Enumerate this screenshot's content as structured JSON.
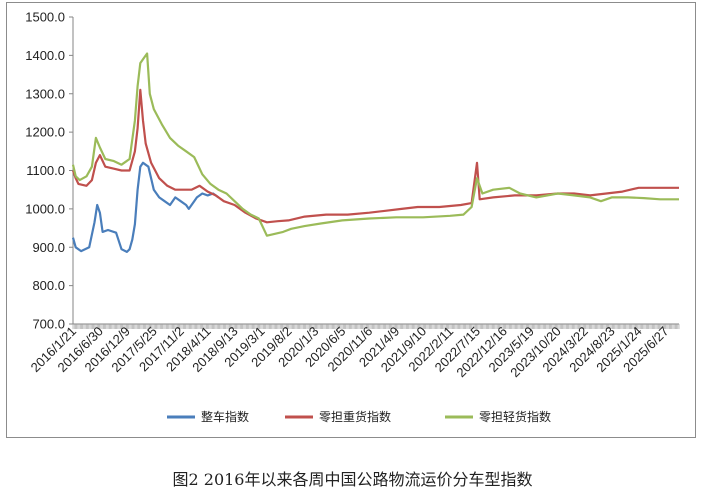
{
  "caption": "图2 2016年以来各周中国公路物流运价分车型指数",
  "colors": {
    "整车指数": "#4a7ebb",
    "零担重货指数": "#c0504d",
    "零担轻货指数": "#9bbb59"
  },
  "chart_data": {
    "type": "line",
    "title": "",
    "xlabel": "",
    "ylabel": "",
    "ylim": [
      700,
      1500
    ],
    "yticks": [
      "700.0",
      "800.0",
      "900.0",
      "1000.0",
      "1100.0",
      "1200.0",
      "1300.0",
      "1400.0",
      "1500.0"
    ],
    "xticks": [
      "2016/1/21",
      "2016/6/30",
      "2016/12/9",
      "2017/5/25",
      "2017/11/2",
      "2018/4/11",
      "2018/9/13",
      "2019/3/1",
      "2019/8/2",
      "2020/1/3",
      "2020/6/5",
      "2020/11/6",
      "2021/4/9",
      "2021/9/10",
      "2022/2/11",
      "2022/7/15",
      "2022/12/16",
      "2023/5/19",
      "2023/10/20",
      "2024/3/22",
      "2024/8/23",
      "2025/1/24",
      "2025/6/27"
    ],
    "legend_position": "bottom",
    "grid": false,
    "series": [
      {
        "name": "整车指数",
        "points": [
          [
            0,
            925
          ],
          [
            0.1,
            900
          ],
          [
            0.3,
            890
          ],
          [
            0.6,
            900
          ],
          [
            0.8,
            965
          ],
          [
            0.9,
            1010
          ],
          [
            1.0,
            990
          ],
          [
            1.1,
            940
          ],
          [
            1.3,
            945
          ],
          [
            1.6,
            938
          ],
          [
            1.8,
            895
          ],
          [
            2.0,
            888
          ],
          [
            2.1,
            895
          ],
          [
            2.2,
            920
          ],
          [
            2.3,
            960
          ],
          [
            2.4,
            1050
          ],
          [
            2.5,
            1110
          ],
          [
            2.6,
            1120
          ],
          [
            2.8,
            1110
          ],
          [
            2.9,
            1080
          ],
          [
            3.0,
            1050
          ],
          [
            3.2,
            1030
          ],
          [
            3.4,
            1020
          ],
          [
            3.6,
            1010
          ],
          [
            3.8,
            1030
          ],
          [
            4.0,
            1020
          ],
          [
            4.2,
            1010
          ],
          [
            4.3,
            1000
          ],
          [
            4.5,
            1020
          ],
          [
            4.6,
            1030
          ],
          [
            4.8,
            1040
          ],
          [
            5.0,
            1035
          ],
          [
            5.2,
            1040
          ],
          [
            5.4,
            1030
          ]
        ]
      },
      {
        "name": "零担重货指数",
        "points": [
          [
            0,
            1100
          ],
          [
            0.1,
            1080
          ],
          [
            0.2,
            1065
          ],
          [
            0.5,
            1060
          ],
          [
            0.7,
            1075
          ],
          [
            0.85,
            1120
          ],
          [
            1.0,
            1140
          ],
          [
            1.2,
            1110
          ],
          [
            1.5,
            1105
          ],
          [
            1.8,
            1100
          ],
          [
            2.1,
            1100
          ],
          [
            2.3,
            1150
          ],
          [
            2.4,
            1210
          ],
          [
            2.5,
            1310
          ],
          [
            2.6,
            1230
          ],
          [
            2.7,
            1170
          ],
          [
            2.9,
            1120
          ],
          [
            3.2,
            1080
          ],
          [
            3.5,
            1060
          ],
          [
            3.8,
            1050
          ],
          [
            4.1,
            1050
          ],
          [
            4.4,
            1050
          ],
          [
            4.7,
            1060
          ],
          [
            5.0,
            1045
          ],
          [
            5.3,
            1035
          ],
          [
            5.6,
            1020
          ],
          [
            6.0,
            1010
          ],
          [
            6.4,
            990
          ],
          [
            6.8,
            975
          ],
          [
            7.2,
            965
          ],
          [
            7.6,
            968
          ],
          [
            8.0,
            970
          ],
          [
            8.6,
            980
          ],
          [
            9.4,
            985
          ],
          [
            10.2,
            985
          ],
          [
            11.0,
            990
          ],
          [
            11.6,
            995
          ],
          [
            12.2,
            1000
          ],
          [
            12.8,
            1005
          ],
          [
            13.6,
            1005
          ],
          [
            14.4,
            1010
          ],
          [
            14.8,
            1015
          ],
          [
            15.0,
            1120
          ],
          [
            15.1,
            1025
          ],
          [
            15.6,
            1030
          ],
          [
            16.4,
            1035
          ],
          [
            17.2,
            1035
          ],
          [
            18.0,
            1040
          ],
          [
            18.6,
            1040
          ],
          [
            19.2,
            1035
          ],
          [
            19.8,
            1040
          ],
          [
            20.4,
            1045
          ],
          [
            21.0,
            1055
          ],
          [
            21.6,
            1055
          ],
          [
            22.2,
            1055
          ],
          [
            22.5,
            1055
          ]
        ]
      },
      {
        "name": "零担轻货指数",
        "points": [
          [
            0,
            1115
          ],
          [
            0.1,
            1085
          ],
          [
            0.25,
            1075
          ],
          [
            0.5,
            1085
          ],
          [
            0.7,
            1110
          ],
          [
            0.85,
            1185
          ],
          [
            1.0,
            1160
          ],
          [
            1.2,
            1130
          ],
          [
            1.5,
            1125
          ],
          [
            1.8,
            1115
          ],
          [
            2.1,
            1130
          ],
          [
            2.3,
            1230
          ],
          [
            2.4,
            1320
          ],
          [
            2.5,
            1380
          ],
          [
            2.6,
            1390
          ],
          [
            2.75,
            1405
          ],
          [
            2.85,
            1300
          ],
          [
            3.0,
            1260
          ],
          [
            3.3,
            1220
          ],
          [
            3.6,
            1185
          ],
          [
            3.9,
            1165
          ],
          [
            4.2,
            1150
          ],
          [
            4.5,
            1135
          ],
          [
            4.8,
            1090
          ],
          [
            5.1,
            1065
          ],
          [
            5.4,
            1050
          ],
          [
            5.7,
            1040
          ],
          [
            6.0,
            1020
          ],
          [
            6.3,
            1000
          ],
          [
            6.6,
            985
          ],
          [
            6.9,
            975
          ],
          [
            7.2,
            930
          ],
          [
            7.5,
            935
          ],
          [
            7.8,
            940
          ],
          [
            8.1,
            948
          ],
          [
            8.6,
            955
          ],
          [
            9.2,
            962
          ],
          [
            10.0,
            970
          ],
          [
            11.0,
            975
          ],
          [
            12.0,
            978
          ],
          [
            13.0,
            978
          ],
          [
            14.0,
            982
          ],
          [
            14.5,
            985
          ],
          [
            14.8,
            1005
          ],
          [
            15.0,
            1080
          ],
          [
            15.2,
            1040
          ],
          [
            15.6,
            1050
          ],
          [
            16.2,
            1055
          ],
          [
            16.6,
            1040
          ],
          [
            17.2,
            1030
          ],
          [
            18.0,
            1040
          ],
          [
            18.6,
            1035
          ],
          [
            19.2,
            1030
          ],
          [
            19.6,
            1020
          ],
          [
            20.0,
            1030
          ],
          [
            20.6,
            1030
          ],
          [
            21.2,
            1028
          ],
          [
            21.8,
            1025
          ],
          [
            22.5,
            1025
          ]
        ]
      }
    ]
  }
}
